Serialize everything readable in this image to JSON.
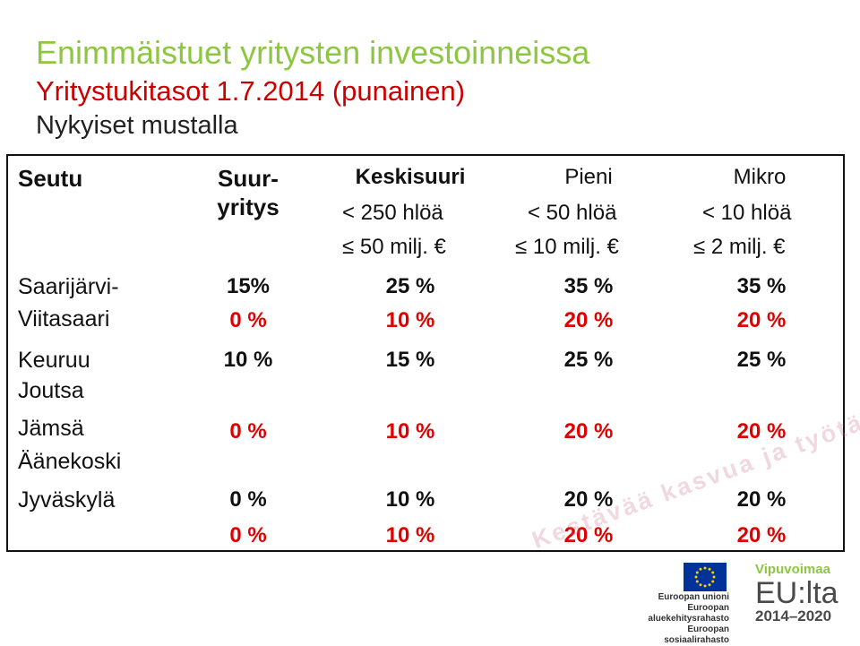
{
  "title": "Enimmäistuet yritysten investoinneissa",
  "subtitle": "Yritystukitasot 1.7.2014 (punainen)",
  "subtitle2": "Nykyiset mustalla",
  "table": {
    "headers": {
      "seutu": "Seutu",
      "suur_line1": "Suur-",
      "suur_line2": "yritys",
      "keski_line1": "Keskisuuri",
      "keski_line2": "< 250 hlöä",
      "keski_line3": "≤ 50 milj. €",
      "pieni_line1": "Pieni",
      "pieni_line2": "< 50 hlöä",
      "pieni_line3": "≤  10 milj. €",
      "mikro_line1": "Mikro",
      "mikro_line2": "< 10 hlöä",
      "mikro_line3": "≤  2 milj. €"
    },
    "regions": {
      "r1_line1": "Saarijärvi-",
      "r1_line2": "Viitasaari",
      "r2_line1": "Keuruu",
      "r2_line2": "Joutsa",
      "r3_line1": "Jämsä",
      "r3_line2": "Äänekoski",
      "r4": "Jyväskylä"
    },
    "rows": [
      {
        "current": [
          "15%",
          "25 %",
          "35 %",
          "35 %"
        ],
        "new": [
          "0 %",
          "10 %",
          "20 %",
          "20 %"
        ]
      },
      {
        "current": [
          "10 %",
          "15 %",
          "25 %",
          "25 %"
        ],
        "new": [
          "0 %",
          "10 %",
          "20 %",
          "20 %"
        ]
      },
      {
        "current": [
          "0 %",
          "10 %",
          "20 %",
          "20 %"
        ],
        "new": [
          "0 %",
          "10 %",
          "20 %",
          "20 %"
        ]
      }
    ]
  },
  "watermark": "Kestävää kasvua ja työtä ohjelma",
  "logos": {
    "eu_line1": "Euroopan unioni",
    "eu_line2": "Euroopan aluekehitysrahasto",
    "eu_line3": "Euroopan sosiaalirahasto",
    "vipu": "Vipuvoimaa",
    "eulta": "EU:lta",
    "years": "2014–2020"
  },
  "colors": {
    "title_green": "#8dc63f",
    "new_red": "#e00000",
    "eu_blue": "#003399",
    "eu_star": "#ffcc00"
  }
}
